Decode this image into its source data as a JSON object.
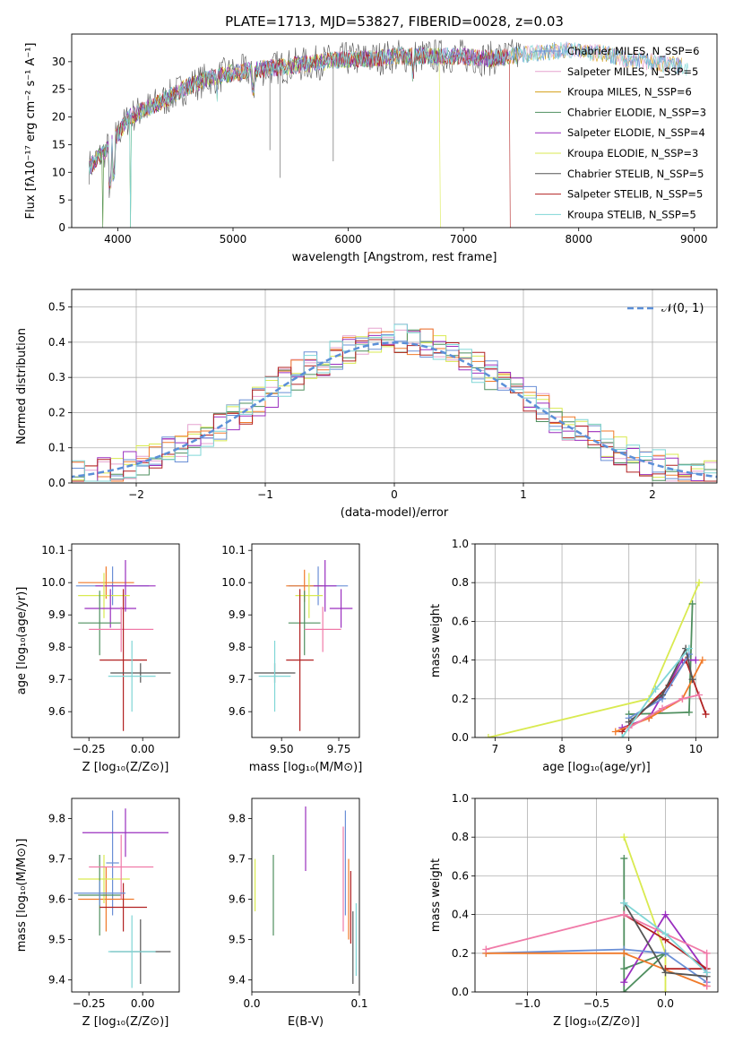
{
  "title": "PLATE=1713, MJD=53827, FIBERID=0028, z=0.03",
  "colors": {
    "chab_miles": "#6a8fd6",
    "salp_miles": "#e6a3cf",
    "krou_miles": "#d4a017",
    "chab_elodie": "#4f8f5f",
    "salp_elodie": "#9a2fbf",
    "krou_elodie": "#d9ea50",
    "chab_stelib": "#555555",
    "salp_stelib": "#b22222",
    "krou_stelib": "#7fd6d6",
    "orange": "#f07a2a",
    "pink": "#f07aa8",
    "normal": "#5b8fd8"
  },
  "chart_data": [
    {
      "id": "spectrum",
      "type": "line",
      "xlabel": "wavelength [Angstrom, rest frame]",
      "ylabel": "Flux [fλ10⁻¹⁷ erg cm⁻² s⁻¹ A⁻¹]",
      "xlim": [
        3600,
        9200
      ],
      "ylim": [
        0,
        35
      ],
      "xticks": [
        4000,
        5000,
        6000,
        7000,
        8000,
        9000
      ],
      "yticks": [
        0,
        5,
        10,
        15,
        20,
        25,
        30
      ],
      "legend_position": "right",
      "legend": [
        "Chabrier MILES, N_SSP=6",
        "Salpeter MILES, N_SSP=5",
        "Kroupa MILES, N_SSP=6",
        "Chabrier ELODIE, N_SSP=3",
        "Salpeter ELODIE, N_SSP=4",
        "Kroupa ELODIE, N_SSP=3",
        "Chabrier STELIB, N_SSP=5",
        "Salpeter STELIB, N_SSP=5",
        "Kroupa STELIB, N_SSP=5"
      ],
      "continuum": {
        "x": [
          3750,
          3900,
          4000,
          4100,
          4200,
          4400,
          4600,
          4800,
          5000,
          5200,
          5400,
          5600,
          5800,
          6000,
          6200,
          6400,
          6600,
          6800,
          7000,
          7200,
          7400,
          7600,
          7800,
          8000,
          8200,
          8400,
          8600,
          8800,
          8950
        ],
        "y": [
          11,
          14,
          17,
          20,
          21,
          23,
          25.5,
          27,
          28,
          28.5,
          29,
          29.5,
          30,
          30.5,
          30.5,
          31,
          31,
          31,
          31,
          30.5,
          31,
          31.5,
          32,
          32,
          31.5,
          30.5,
          30,
          29.5,
          29
        ]
      }
    },
    {
      "id": "residuals",
      "type": "line",
      "xlabel": "(data-model)/error",
      "ylabel": "Normed distribution",
      "xlim": [
        -2.5,
        2.5
      ],
      "ylim": [
        0,
        0.55
      ],
      "xticks": [
        -2,
        -1,
        0,
        1,
        2
      ],
      "yticks": [
        0.0,
        0.1,
        0.2,
        0.3,
        0.4,
        0.5
      ],
      "grid": true,
      "legend": "𝒩(0, 1)",
      "legend_position": "top-right",
      "bin_width": 0.1
    },
    {
      "id": "age_Z",
      "type": "scatter",
      "xlabel": "Z [log₁₀(Z/Z⊙)]",
      "ylabel": "age  [log₁₀(age/yr)]",
      "xlim": [
        -0.33,
        0.17
      ],
      "ylim": [
        9.52,
        10.12
      ],
      "xticks": [
        -0.25,
        0.0
      ],
      "yticks": [
        9.6,
        9.7,
        9.8,
        9.9,
        10.0,
        10.1
      ],
      "points": [
        {
          "x": -0.14,
          "y": 9.99,
          "xerr": 0.17,
          "yerr": 0.06,
          "color": "chab_miles"
        },
        {
          "x": -0.17,
          "y": 10.0,
          "xerr": 0.13,
          "yerr": 0.05,
          "color": "orange"
        },
        {
          "x": -0.08,
          "y": 9.99,
          "xerr": 0.14,
          "yerr": 0.08,
          "color": "salp_elodie"
        },
        {
          "x": -0.18,
          "y": 9.96,
          "xerr": 0.12,
          "yerr": 0.07,
          "color": "krou_elodie"
        },
        {
          "x": -0.15,
          "y": 9.92,
          "xerr": 0.12,
          "yerr": 0.06,
          "color": "salp_elodie"
        },
        {
          "x": -0.2,
          "y": 9.875,
          "xerr": 0.1,
          "yerr": 0.1,
          "color": "chab_elodie"
        },
        {
          "x": -0.1,
          "y": 9.855,
          "xerr": 0.15,
          "yerr": 0.07,
          "color": "pink"
        },
        {
          "x": -0.09,
          "y": 9.76,
          "xerr": 0.11,
          "yerr": 0.22,
          "color": "salp_stelib"
        },
        {
          "x": -0.01,
          "y": 9.72,
          "xerr": 0.14,
          "yerr": 0.03,
          "color": "chab_stelib"
        },
        {
          "x": -0.05,
          "y": 9.71,
          "xerr": 0.11,
          "yerr": 0.11,
          "color": "krou_stelib"
        }
      ]
    },
    {
      "id": "age_mass",
      "type": "scatter",
      "xlabel": "mass [log₁₀(M/M⊙)]",
      "ylabel": "",
      "xlim": [
        9.37,
        9.84
      ],
      "ylim": [
        9.52,
        10.12
      ],
      "xticks": [
        9.5,
        9.75
      ],
      "yticks": [
        9.6,
        9.7,
        9.8,
        9.9,
        10.0,
        10.1
      ],
      "points": [
        {
          "x": 9.66,
          "y": 9.99,
          "xerr": 0.13,
          "yerr": 0.06,
          "color": "chab_miles"
        },
        {
          "x": 9.6,
          "y": 9.99,
          "xerr": 0.08,
          "yerr": 0.05,
          "color": "orange"
        },
        {
          "x": 9.69,
          "y": 9.99,
          "xerr": 0.05,
          "yerr": 0.08,
          "color": "salp_elodie"
        },
        {
          "x": 9.62,
          "y": 9.96,
          "xerr": 0.06,
          "yerr": 0.07,
          "color": "krou_elodie"
        },
        {
          "x": 9.76,
          "y": 9.92,
          "xerr": 0.05,
          "yerr": 0.06,
          "color": "salp_elodie"
        },
        {
          "x": 9.6,
          "y": 9.875,
          "xerr": 0.07,
          "yerr": 0.1,
          "color": "chab_elodie"
        },
        {
          "x": 9.68,
          "y": 9.855,
          "xerr": 0.08,
          "yerr": 0.07,
          "color": "pink"
        },
        {
          "x": 9.58,
          "y": 9.76,
          "xerr": 0.06,
          "yerr": 0.22,
          "color": "salp_stelib"
        },
        {
          "x": 9.47,
          "y": 9.72,
          "xerr": 0.09,
          "yerr": 0.03,
          "color": "chab_stelib"
        },
        {
          "x": 9.47,
          "y": 9.71,
          "xerr": 0.07,
          "yerr": 0.11,
          "color": "krou_stelib"
        }
      ]
    },
    {
      "id": "mw_age",
      "type": "line",
      "xlabel": "age  [log₁₀(age/yr)]",
      "ylabel": "mass weight",
      "xlim": [
        6.7,
        10.33
      ],
      "ylim": [
        0,
        1.0
      ],
      "xticks": [
        7,
        8,
        9,
        10
      ],
      "yticks": [
        0.0,
        0.2,
        0.4,
        0.6,
        0.8,
        1.0
      ],
      "grid": true,
      "series": [
        {
          "color": "krou_elodie",
          "x": [
            6.9,
            9.3,
            10.05
          ],
          "y": [
            0.0,
            0.2,
            0.8
          ]
        },
        {
          "color": "chab_elodie",
          "x": [
            9.0,
            9.9,
            9.95
          ],
          "y": [
            0.12,
            0.13,
            0.69
          ]
        },
        {
          "color": "salp_elodie",
          "x": [
            8.9,
            9.3,
            9.8,
            10.0
          ],
          "y": [
            0.05,
            0.1,
            0.4,
            0.4
          ]
        },
        {
          "color": "salp_stelib",
          "x": [
            8.9,
            9.6,
            9.85,
            10.15
          ],
          "y": [
            0.03,
            0.27,
            0.4,
            0.12
          ]
        },
        {
          "color": "chab_miles",
          "x": [
            9.0,
            9.5,
            9.9
          ],
          "y": [
            0.1,
            0.2,
            0.43
          ]
        },
        {
          "color": "orange",
          "x": [
            8.8,
            9.3,
            9.8,
            10.1
          ],
          "y": [
            0.03,
            0.1,
            0.2,
            0.4
          ]
        },
        {
          "color": "pink",
          "x": [
            9.0,
            9.5,
            9.8,
            10.05
          ],
          "y": [
            0.05,
            0.15,
            0.2,
            0.22
          ]
        },
        {
          "color": "chab_stelib",
          "x": [
            9.0,
            9.5,
            9.85,
            9.95
          ],
          "y": [
            0.08,
            0.22,
            0.46,
            0.3
          ]
        },
        {
          "color": "krou_stelib",
          "x": [
            8.9,
            9.4,
            9.9
          ],
          "y": [
            0.0,
            0.25,
            0.46
          ]
        }
      ]
    },
    {
      "id": "mass_Z",
      "type": "scatter",
      "xlabel": "Z [log₁₀(Z/Z⊙)]",
      "ylabel": "mass [log₁₀(M/M⊙)]",
      "xlim": [
        -0.33,
        0.17
      ],
      "ylim": [
        9.37,
        9.85
      ],
      "xticks": [
        -0.25,
        0.0
      ],
      "yticks": [
        9.4,
        9.5,
        9.6,
        9.7,
        9.8
      ],
      "points": [
        {
          "x": -0.14,
          "y": 9.69,
          "xerr": 0.03,
          "yerr": 0.13,
          "color": "chab_miles"
        },
        {
          "x": -0.17,
          "y": 9.6,
          "xerr": 0.13,
          "yerr": 0.08,
          "color": "orange"
        },
        {
          "x": -0.08,
          "y": 9.765,
          "xerr": 0.2,
          "yerr": 0.06,
          "color": "salp_elodie"
        },
        {
          "x": -0.18,
          "y": 9.65,
          "xerr": 0.12,
          "yerr": 0.06,
          "color": "krou_elodie"
        },
        {
          "x": -0.2,
          "y": 9.61,
          "xerr": 0.1,
          "yerr": 0.1,
          "color": "chab_elodie"
        },
        {
          "x": -0.1,
          "y": 9.68,
          "xerr": 0.15,
          "yerr": 0.08,
          "color": "pink"
        },
        {
          "x": -0.09,
          "y": 9.58,
          "xerr": 0.11,
          "yerr": 0.06,
          "color": "salp_stelib"
        },
        {
          "x": -0.2,
          "y": 9.615,
          "xerr": 0.12,
          "yerr": 0.03,
          "color": "chab_miles"
        },
        {
          "x": -0.01,
          "y": 9.47,
          "xerr": 0.14,
          "yerr": 0.08,
          "color": "chab_stelib"
        },
        {
          "x": -0.05,
          "y": 9.47,
          "xerr": 0.11,
          "yerr": 0.09,
          "color": "krou_stelib"
        }
      ]
    },
    {
      "id": "mass_ebv",
      "type": "scatter",
      "xlabel": "E(B-V)",
      "ylabel": "",
      "xlim": [
        0.0,
        0.1
      ],
      "ylim": [
        9.37,
        9.85
      ],
      "xticks": [
        0.0,
        0.1
      ],
      "yticks": [
        9.4,
        9.5,
        9.6,
        9.7,
        9.8
      ],
      "points": [
        {
          "x": 0.003,
          "y": 9.635,
          "yerr": 0.065,
          "color": "krou_elodie"
        },
        {
          "x": 0.02,
          "y": 9.61,
          "yerr": 0.1,
          "color": "chab_elodie"
        },
        {
          "x": 0.05,
          "y": 9.75,
          "yerr": 0.08,
          "color": "salp_elodie"
        },
        {
          "x": 0.087,
          "y": 9.69,
          "yerr": 0.13,
          "color": "chab_miles"
        },
        {
          "x": 0.085,
          "y": 9.65,
          "yerr": 0.13,
          "color": "pink"
        },
        {
          "x": 0.09,
          "y": 9.6,
          "yerr": 0.1,
          "color": "orange"
        },
        {
          "x": 0.092,
          "y": 9.58,
          "yerr": 0.09,
          "color": "salp_stelib"
        },
        {
          "x": 0.094,
          "y": 9.48,
          "yerr": 0.09,
          "color": "chab_stelib"
        },
        {
          "x": 0.097,
          "y": 9.5,
          "yerr": 0.09,
          "color": "krou_stelib"
        }
      ]
    },
    {
      "id": "mw_Z",
      "type": "line",
      "xlabel": "Z [log₁₀(Z/Z⊙)]",
      "ylabel": "mass weight",
      "xlim": [
        -1.38,
        0.38
      ],
      "ylim": [
        0,
        1.0
      ],
      "xticks": [
        -1.0,
        -0.5,
        0.0
      ],
      "yticks": [
        0.0,
        0.2,
        0.4,
        0.6,
        0.8,
        1.0
      ],
      "grid": true,
      "series": [
        {
          "color": "krou_elodie",
          "x": [
            -0.3,
            0.0,
            0.0
          ],
          "y": [
            0.8,
            0.2,
            0.0
          ]
        },
        {
          "color": "chab_elodie",
          "x": [
            -0.3,
            -0.3,
            0.0,
            -0.3
          ],
          "y": [
            0.69,
            0.0,
            0.2,
            0.12
          ]
        },
        {
          "color": "salp_elodie",
          "x": [
            -0.3,
            0.0,
            0.3
          ],
          "y": [
            0.05,
            0.4,
            0.1
          ]
        },
        {
          "color": "salp_stelib",
          "x": [
            -0.3,
            0.0,
            0.3,
            0.0
          ],
          "y": [
            0.4,
            0.27,
            0.12,
            0.12
          ]
        },
        {
          "color": "chab_miles",
          "x": [
            -1.3,
            -0.3,
            0.0,
            0.3
          ],
          "y": [
            0.2,
            0.22,
            0.2,
            0.05
          ]
        },
        {
          "color": "orange",
          "x": [
            -1.3,
            -0.3,
            0.3
          ],
          "y": [
            0.2,
            0.2,
            0.03
          ]
        },
        {
          "color": "pink",
          "x": [
            -1.3,
            -0.3,
            0.3,
            0.3
          ],
          "y": [
            0.22,
            0.4,
            0.2,
            0.03
          ]
        },
        {
          "color": "chab_stelib",
          "x": [
            -0.3,
            0.0,
            0.3
          ],
          "y": [
            0.46,
            0.1,
            0.08
          ]
        },
        {
          "color": "krou_stelib",
          "x": [
            -0.3,
            0.0,
            0.3
          ],
          "y": [
            0.46,
            0.3,
            0.1
          ]
        }
      ]
    }
  ]
}
